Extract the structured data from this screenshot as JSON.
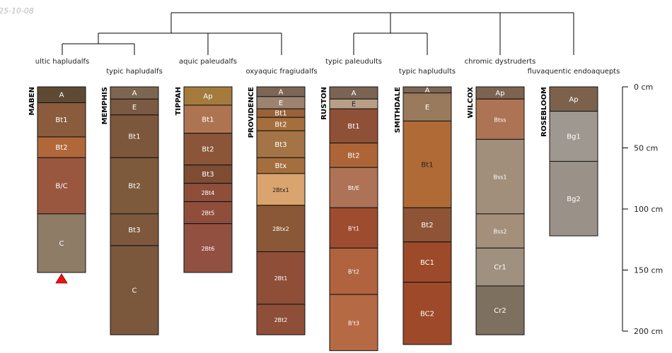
{
  "stamp": "25-10-08",
  "depth_axis": {
    "unit": "cm",
    "max_depth": 200,
    "ticks": [
      {
        "value": 0,
        "label": "0 cm"
      },
      {
        "value": 50,
        "label": "50 cm"
      },
      {
        "value": 100,
        "label": "100 cm"
      },
      {
        "value": 150,
        "label": "150 cm"
      },
      {
        "value": 200,
        "label": "200 cm"
      }
    ]
  },
  "profiles": [
    {
      "name": "MABEN",
      "taxon": "ultic hapludalfs",
      "marker": "red-triangle",
      "horizons": [
        {
          "name": "A",
          "top": 0,
          "bottom": 13,
          "color": "#5e4a34",
          "text": "#ffffff"
        },
        {
          "name": "Bt1",
          "top": 13,
          "bottom": 41,
          "color": "#8a5b3c",
          "text": "#ffffff"
        },
        {
          "name": "Bt2",
          "top": 41,
          "bottom": 58,
          "color": "#b0683a",
          "text": "#ffffff"
        },
        {
          "name": "B/C",
          "top": 58,
          "bottom": 104,
          "color": "#9a5740",
          "text": "#ffffff"
        },
        {
          "name": "C",
          "top": 104,
          "bottom": 152,
          "color": "#8e7c66",
          "text": "#ffffff"
        }
      ]
    },
    {
      "name": "MEMPHIS",
      "taxon": "typic hapludalfs",
      "horizons": [
        {
          "name": "A",
          "top": 0,
          "bottom": 10,
          "color": "#7c6652",
          "text": "#ffffff"
        },
        {
          "name": "E",
          "top": 10,
          "bottom": 23,
          "color": "#7a5a42",
          "text": "#ffffff"
        },
        {
          "name": "Bt1",
          "top": 23,
          "bottom": 58,
          "color": "#7d573c",
          "text": "#ffffff"
        },
        {
          "name": "Bt2",
          "top": 58,
          "bottom": 104,
          "color": "#7d5a3c",
          "text": "#ffffff"
        },
        {
          "name": "Bt3",
          "top": 104,
          "bottom": 130,
          "color": "#7d583c",
          "text": "#ffffff"
        },
        {
          "name": "C",
          "top": 130,
          "bottom": 203,
          "color": "#7b573c",
          "text": "#ffffff"
        }
      ]
    },
    {
      "name": "TIPPAH",
      "taxon": "aquic paleudalfs",
      "horizons": [
        {
          "name": "Ap",
          "top": 0,
          "bottom": 15,
          "color": "#a47b3c",
          "text": "#ffffff"
        },
        {
          "name": "Bt1",
          "top": 15,
          "bottom": 38,
          "color": "#ae7452",
          "text": "#ffffff"
        },
        {
          "name": "Bt2",
          "top": 38,
          "bottom": 64,
          "color": "#8a5538",
          "text": "#ffffff"
        },
        {
          "name": "Bt3",
          "top": 64,
          "bottom": 79,
          "color": "#7e4d34",
          "text": "#ffffff"
        },
        {
          "name": "2Bt4",
          "top": 79,
          "bottom": 94,
          "color": "#8e4e3a",
          "text": "#ffffff"
        },
        {
          "name": "2Bt5",
          "top": 94,
          "bottom": 112,
          "color": "#8f4e3b",
          "text": "#ffffff"
        },
        {
          "name": "2Bt6",
          "top": 112,
          "bottom": 152,
          "color": "#925040",
          "text": "#ffffff"
        }
      ]
    },
    {
      "name": "PROVIDENCE",
      "taxon": "oxyaquic fragiudalfs",
      "horizons": [
        {
          "name": "A",
          "top": 0,
          "bottom": 8,
          "color": "#7c6656",
          "text": "#ffffff"
        },
        {
          "name": "E",
          "top": 8,
          "bottom": 18,
          "color": "#9c8470",
          "text": "#ffffff"
        },
        {
          "name": "Bt1",
          "top": 18,
          "bottom": 25,
          "color": "#9a6238",
          "text": "#ffffff"
        },
        {
          "name": "Bt2",
          "top": 25,
          "bottom": 36,
          "color": "#a56e3c",
          "text": "#ffffff"
        },
        {
          "name": "Bt3",
          "top": 36,
          "bottom": 58,
          "color": "#a47446",
          "text": "#ffffff"
        },
        {
          "name": "Btx",
          "top": 58,
          "bottom": 71,
          "color": "#a46e3e",
          "text": "#ffffff"
        },
        {
          "name": "2Btx1",
          "top": 71,
          "bottom": 97,
          "color": "#d9a46e",
          "text": "#222222"
        },
        {
          "name": "2Btx2",
          "top": 97,
          "bottom": 135,
          "color": "#8a5836",
          "text": "#ffffff"
        },
        {
          "name": "2Bt1",
          "top": 135,
          "bottom": 178,
          "color": "#8e4e38",
          "text": "#ffffff"
        },
        {
          "name": "2Bt2",
          "top": 178,
          "bottom": 203,
          "color": "#8e4e38",
          "text": "#ffffff"
        }
      ]
    },
    {
      "name": "RUSTON",
      "taxon": "typic paleudults",
      "horizons": [
        {
          "name": "A",
          "top": 0,
          "bottom": 10,
          "color": "#7b6454",
          "text": "#ffffff"
        },
        {
          "name": "E",
          "top": 10,
          "bottom": 18,
          "color": "#b8a088",
          "text": "#222222"
        },
        {
          "name": "Bt1",
          "top": 18,
          "bottom": 46,
          "color": "#8f5038",
          "text": "#ffffff"
        },
        {
          "name": "Bt2",
          "top": 46,
          "bottom": 66,
          "color": "#ad6538",
          "text": "#ffffff"
        },
        {
          "name": "Bt/E",
          "top": 66,
          "bottom": 99,
          "color": "#ae7256",
          "text": "#ffffff"
        },
        {
          "name": "B't1",
          "top": 99,
          "bottom": 132,
          "color": "#9e4c30",
          "text": "#ffffff"
        },
        {
          "name": "B't2",
          "top": 132,
          "bottom": 170,
          "color": "#b0633e",
          "text": "#ffffff"
        },
        {
          "name": "B't3",
          "top": 170,
          "bottom": 216,
          "color": "#b56a44",
          "text": "#ffffff"
        }
      ]
    },
    {
      "name": "SMITHDALE",
      "taxon": "typic hapludults",
      "horizons": [
        {
          "name": "A",
          "top": 0,
          "bottom": 5,
          "color": "#7e6656",
          "text": "#ffffff"
        },
        {
          "name": "E",
          "top": 5,
          "bottom": 28,
          "color": "#9a7a5c",
          "text": "#ffffff"
        },
        {
          "name": "Bt1",
          "top": 28,
          "bottom": 99,
          "color": "#b06a36",
          "text": "#222222"
        },
        {
          "name": "Bt2",
          "top": 99,
          "bottom": 127,
          "color": "#8f5436",
          "text": "#ffffff"
        },
        {
          "name": "BC1",
          "top": 127,
          "bottom": 160,
          "color": "#9c4a2a",
          "text": "#ffffff"
        },
        {
          "name": "BC2",
          "top": 160,
          "bottom": 211,
          "color": "#9e4a2a",
          "text": "#ffffff"
        }
      ]
    },
    {
      "name": "WILCOX",
      "taxon": "chromic dystruderts",
      "horizons": [
        {
          "name": "Ap",
          "top": 0,
          "bottom": 10,
          "color": "#7d6450",
          "text": "#ffffff"
        },
        {
          "name": "Btss",
          "top": 10,
          "bottom": 43,
          "color": "#ac7454",
          "text": "#ffffff"
        },
        {
          "name": "Bss1",
          "top": 43,
          "bottom": 104,
          "color": "#a18f7c",
          "text": "#ffffff"
        },
        {
          "name": "Bss2",
          "top": 104,
          "bottom": 132,
          "color": "#a48f7b",
          "text": "#ffffff"
        },
        {
          "name": "Cr1",
          "top": 132,
          "bottom": 163,
          "color": "#a09080",
          "text": "#ffffff"
        },
        {
          "name": "Cr2",
          "top": 163,
          "bottom": 203,
          "color": "#7e705e",
          "text": "#ffffff"
        }
      ]
    },
    {
      "name": "ROSEBLOOM",
      "taxon": "fluvaquentic endoaquepts",
      "horizons": [
        {
          "name": "Ap",
          "top": 0,
          "bottom": 20,
          "color": "#7c624c",
          "text": "#ffffff"
        },
        {
          "name": "Bg1",
          "top": 20,
          "bottom": 61,
          "color": "#9e9890",
          "text": "#ffffff"
        },
        {
          "name": "Bg2",
          "top": 61,
          "bottom": 122,
          "color": "#9a9288",
          "text": "#ffffff"
        }
      ]
    }
  ]
}
